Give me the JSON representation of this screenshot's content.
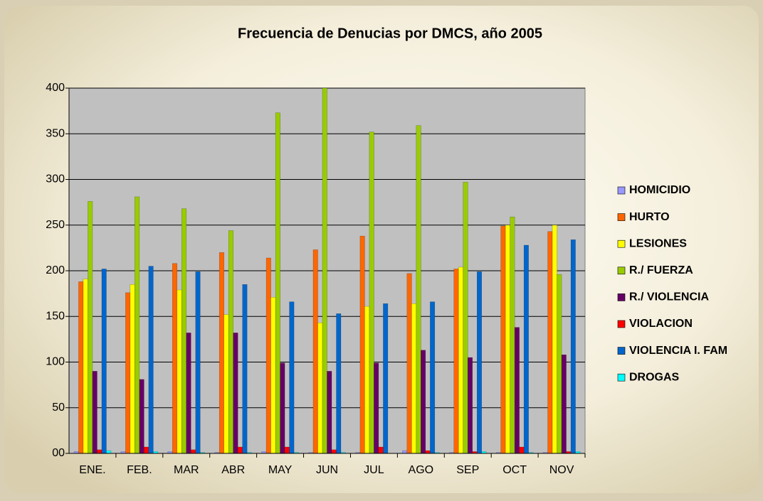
{
  "chart_data": {
    "type": "bar",
    "title": "Frecuencia de Denucias por DMCS, año 2005",
    "categories": [
      "ENE.",
      "FEB.",
      "MAR",
      "ABR",
      "MAY",
      "JUN",
      "JUL",
      "AGO",
      "SEP",
      "OCT",
      "NOV"
    ],
    "series": [
      {
        "name": "HOMICIDIO",
        "color": "#9999ff",
        "values": [
          2,
          2,
          2,
          1,
          2,
          1,
          1,
          3,
          1,
          1,
          1
        ]
      },
      {
        "name": "HURTO",
        "color": "#ff6600",
        "values": [
          188,
          176,
          208,
          220,
          214,
          223,
          238,
          197,
          202,
          249,
          243
        ]
      },
      {
        "name": "LESIONES",
        "color": "#ffff00",
        "values": [
          191,
          185,
          179,
          152,
          171,
          143,
          161,
          164,
          204,
          250,
          250
        ]
      },
      {
        "name": "R./ FUERZA",
        "color": "#99cc00",
        "values": [
          276,
          281,
          268,
          244,
          373,
          400,
          352,
          359,
          297,
          259,
          196
        ]
      },
      {
        "name": "R./ VIOLENCIA",
        "color": "#660066",
        "values": [
          90,
          81,
          132,
          132,
          99,
          90,
          99,
          113,
          105,
          138,
          108
        ]
      },
      {
        "name": "VIOLACION",
        "color": "#ff0000",
        "values": [
          4,
          7,
          4,
          7,
          7,
          4,
          7,
          3,
          2,
          7,
          2
        ]
      },
      {
        "name": "VIOLENCIA I. FAM",
        "color": "#0066cc",
        "values": [
          202,
          205,
          199,
          185,
          166,
          153,
          164,
          166,
          199,
          228,
          234
        ]
      },
      {
        "name": "DROGAS",
        "color": "#00ffff",
        "values": [
          3,
          2,
          1,
          1,
          1,
          1,
          0,
          1,
          2,
          1,
          2
        ]
      }
    ],
    "ylim": [
      0,
      400
    ],
    "yticks": [
      {
        "value": 0,
        "label": "00"
      },
      50,
      100,
      150,
      200,
      250,
      300,
      350,
      400
    ],
    "grid": true,
    "legend": "right"
  }
}
